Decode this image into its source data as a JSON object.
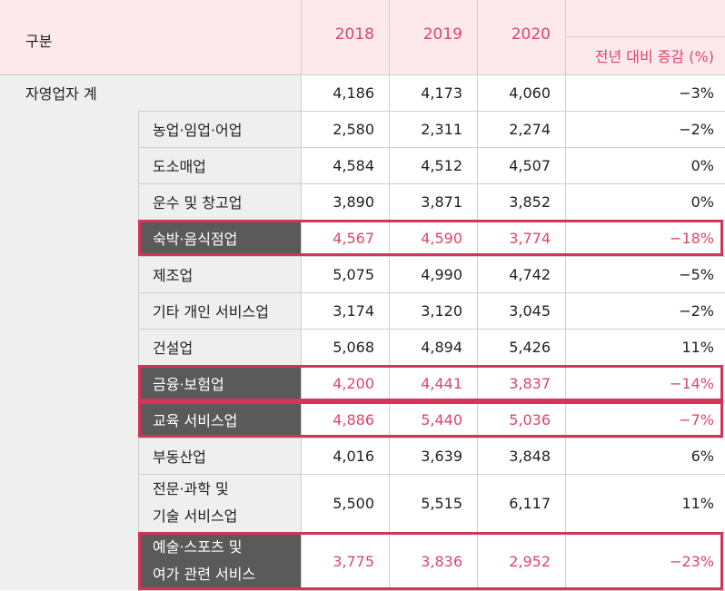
{
  "header": {
    "category": "구분",
    "years": [
      "2018",
      "2019",
      "2020"
    ],
    "change": "전년 대비 증감 (%)"
  },
  "total": {
    "label": "자영업자 계",
    "values": [
      "4,186",
      "4,173",
      "4,060"
    ],
    "change": "-3%"
  },
  "rows": [
    {
      "label": "농업·임업·어업",
      "values": [
        "2,580",
        "2,311",
        "2,274"
      ],
      "change": "-2%",
      "highlight": false
    },
    {
      "label": "도소매업",
      "values": [
        "4,584",
        "4,512",
        "4,507"
      ],
      "change": "0%",
      "highlight": false
    },
    {
      "label": "운수 및 창고업",
      "values": [
        "3,890",
        "3,871",
        "3,852"
      ],
      "change": "0%",
      "highlight": false
    },
    {
      "label": "숙박·음식점업",
      "values": [
        "4,567",
        "4,590",
        "3,774"
      ],
      "change": "-18%",
      "highlight": true
    },
    {
      "label": "제조업",
      "values": [
        "5,075",
        "4,990",
        "4,742"
      ],
      "change": "-5%",
      "highlight": false
    },
    {
      "label": "기타 개인 서비스업",
      "values": [
        "3,174",
        "3,120",
        "3,045"
      ],
      "change": "-2%",
      "highlight": false
    },
    {
      "label": "건설업",
      "values": [
        "5,068",
        "4,894",
        "5,426"
      ],
      "change": "11%",
      "highlight": false
    },
    {
      "label": "금융·보험업",
      "values": [
        "4,200",
        "4,441",
        "3,837"
      ],
      "change": "-14%",
      "highlight": true
    },
    {
      "label": "교육 서비스업",
      "values": [
        "4,886",
        "5,440",
        "5,036"
      ],
      "change": "-7%",
      "highlight": true
    },
    {
      "label": "부동산업",
      "values": [
        "4,016",
        "3,639",
        "3,848"
      ],
      "change": "6%",
      "highlight": false
    },
    {
      "label": "전문·과학 및",
      "label2": "기술 서비스업",
      "values": [
        "5,500",
        "5,515",
        "6,117"
      ],
      "change": "11%",
      "highlight": false
    },
    {
      "label": "예술·스포츠 및",
      "label2": "여가 관련 서비스",
      "values": [
        "3,775",
        "3,836",
        "2,952"
      ],
      "change": "-23%",
      "highlight": true
    }
  ]
}
